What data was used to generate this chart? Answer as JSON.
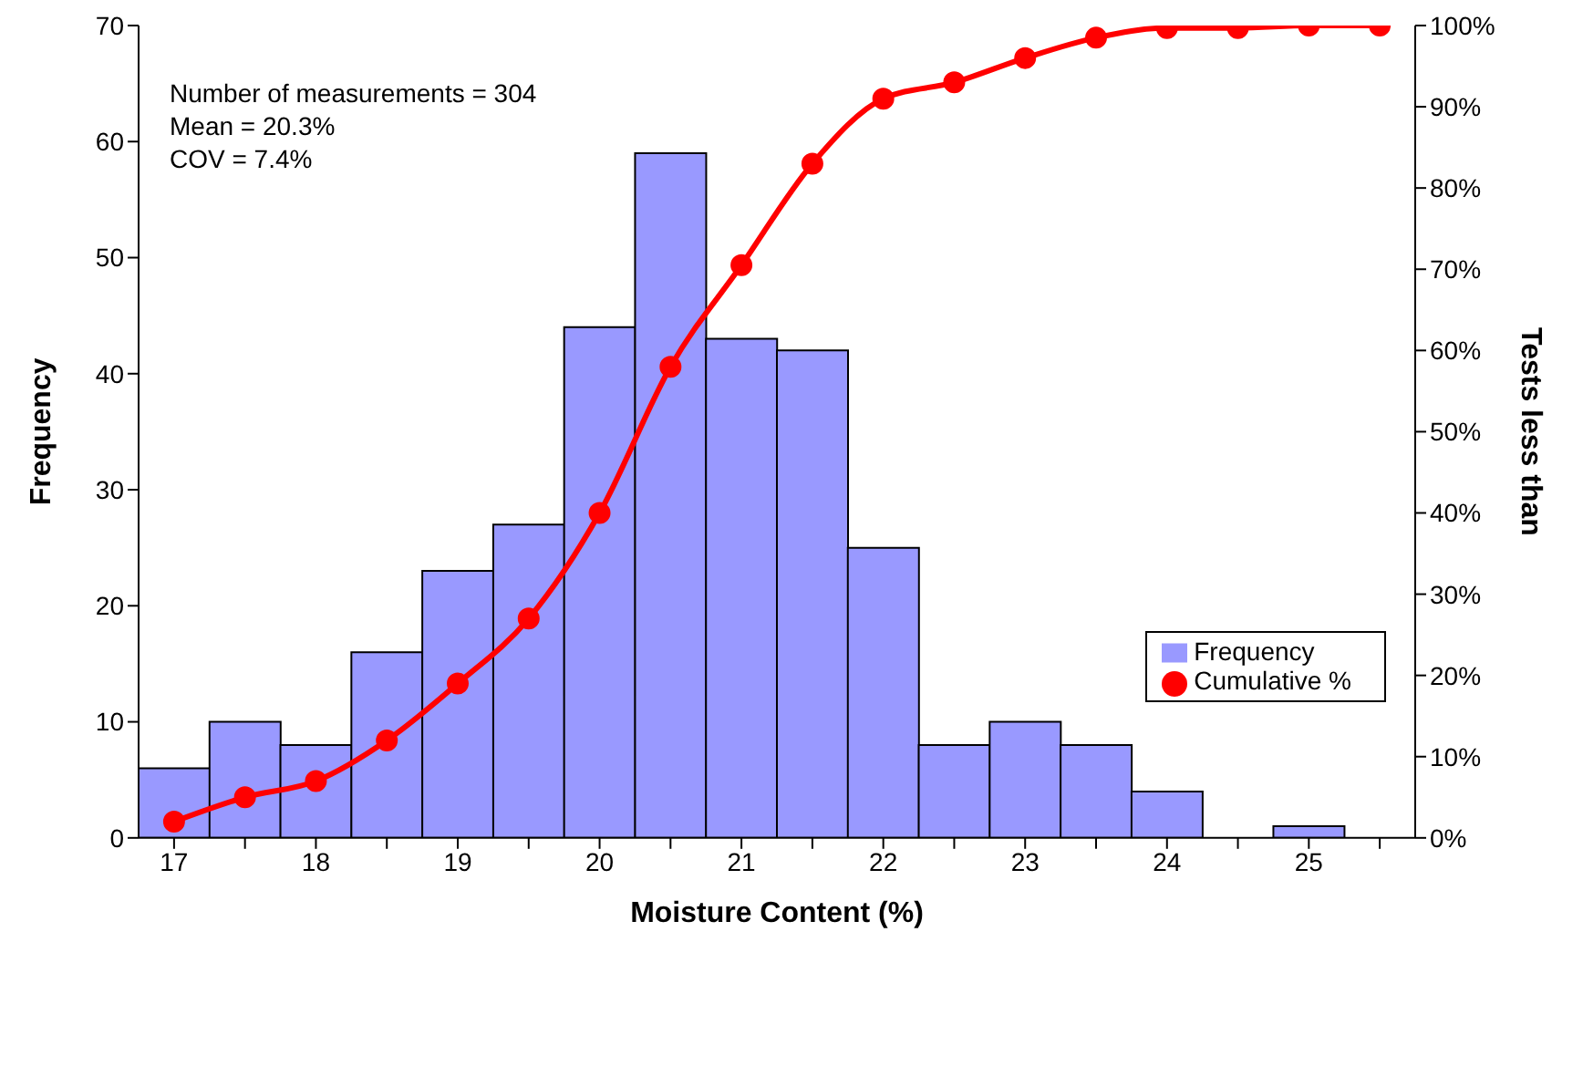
{
  "chart_data": {
    "type": "bar",
    "xlabel": "Moisture Content (%)",
    "ylabel": "Frequency",
    "y2label": "Tests less than",
    "categories": [
      "17",
      null,
      "18",
      null,
      "19",
      null,
      "20",
      null,
      "21",
      null,
      "22",
      null,
      "23",
      null,
      "24",
      null,
      "25",
      null
    ],
    "series": [
      {
        "name": "Frequency",
        "color": "#9999ff",
        "values": [
          6,
          10,
          8,
          16,
          23,
          27,
          44,
          59,
          43,
          42,
          25,
          8,
          10,
          8,
          4,
          0,
          1,
          0
        ]
      },
      {
        "name": "Cumulative %",
        "type": "line",
        "axis": "y2",
        "color": "#ff0000",
        "marker": "circle",
        "line_style": "solid",
        "values": [
          2,
          5,
          7,
          12,
          19,
          27,
          40,
          58,
          70.5,
          83,
          91,
          93,
          96,
          98.5,
          99.7,
          99.7,
          100,
          100
        ]
      }
    ],
    "ylim": [
      0,
      70
    ],
    "yticks": [
      0,
      10,
      20,
      30,
      40,
      50,
      60,
      70
    ],
    "y2lim": [
      0,
      100
    ],
    "y2ticks": [
      {
        "value": 0,
        "label": "0%"
      },
      {
        "value": 10,
        "label": "10%"
      },
      {
        "value": 20,
        "label": "20%"
      },
      {
        "value": 30,
        "label": "30%"
      },
      {
        "value": 40,
        "label": "40%"
      },
      {
        "value": 50,
        "label": "50%"
      },
      {
        "value": 60,
        "label": "60%"
      },
      {
        "value": 70,
        "label": "70%"
      },
      {
        "value": 80,
        "label": "80%"
      },
      {
        "value": 90,
        "label": "90%"
      },
      {
        "value": 100,
        "label": "100%"
      }
    ],
    "grid": false,
    "legend": "right",
    "annotations": [
      "Number of measurements = 304",
      "Mean = 20.3%",
      "COV = 7.4%"
    ]
  }
}
